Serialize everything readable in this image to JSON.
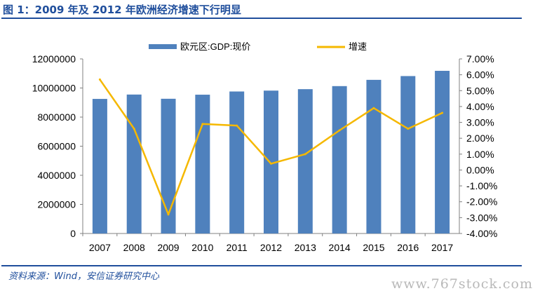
{
  "header": {
    "title": "图 1：2009 年及 2012 年欧洲经济增速下行明显"
  },
  "footer": {
    "source": "资料来源：Wind，安信证券研究中心",
    "watermark": "www.767stock.com"
  },
  "colors": {
    "bar": "#4f81bd",
    "line": "#f5b800",
    "accent": "#1f4e9c",
    "axis": "#808080"
  },
  "chart_data": {
    "type": "bar+line",
    "categories": [
      "2007",
      "2008",
      "2009",
      "2010",
      "2011",
      "2012",
      "2013",
      "2014",
      "2015",
      "2016",
      "2017"
    ],
    "series": [
      {
        "name": "欧元区:GDP:现价",
        "type": "bar",
        "axis": "left",
        "values": [
          9250000,
          9550000,
          9260000,
          9540000,
          9760000,
          9820000,
          9920000,
          10130000,
          10560000,
          10820000,
          11180000
        ]
      },
      {
        "name": "增速",
        "type": "line",
        "axis": "right",
        "values": [
          5.7,
          2.6,
          -2.8,
          2.9,
          2.8,
          0.4,
          1.0,
          2.5,
          3.9,
          2.6,
          3.6
        ]
      }
    ],
    "y_left": {
      "min": 0,
      "max": 12000000,
      "ticks": [
        0,
        2000000,
        4000000,
        6000000,
        8000000,
        10000000,
        12000000
      ],
      "tick_labels": [
        "0",
        "2000000",
        "4000000",
        "6000000",
        "8000000",
        "10000000",
        "12000000"
      ]
    },
    "y_right": {
      "min": -4,
      "max": 7,
      "ticks": [
        -4,
        -3,
        -2,
        -1,
        0,
        1,
        2,
        3,
        4,
        5,
        6,
        7
      ],
      "tick_labels": [
        "-4.00%",
        "-3.00%",
        "-2.00%",
        "-1.00%",
        "0.00%",
        "1.00%",
        "2.00%",
        "3.00%",
        "4.00%",
        "5.00%",
        "6.00%",
        "7.00%"
      ]
    },
    "legend_position": "top",
    "grid": false
  }
}
